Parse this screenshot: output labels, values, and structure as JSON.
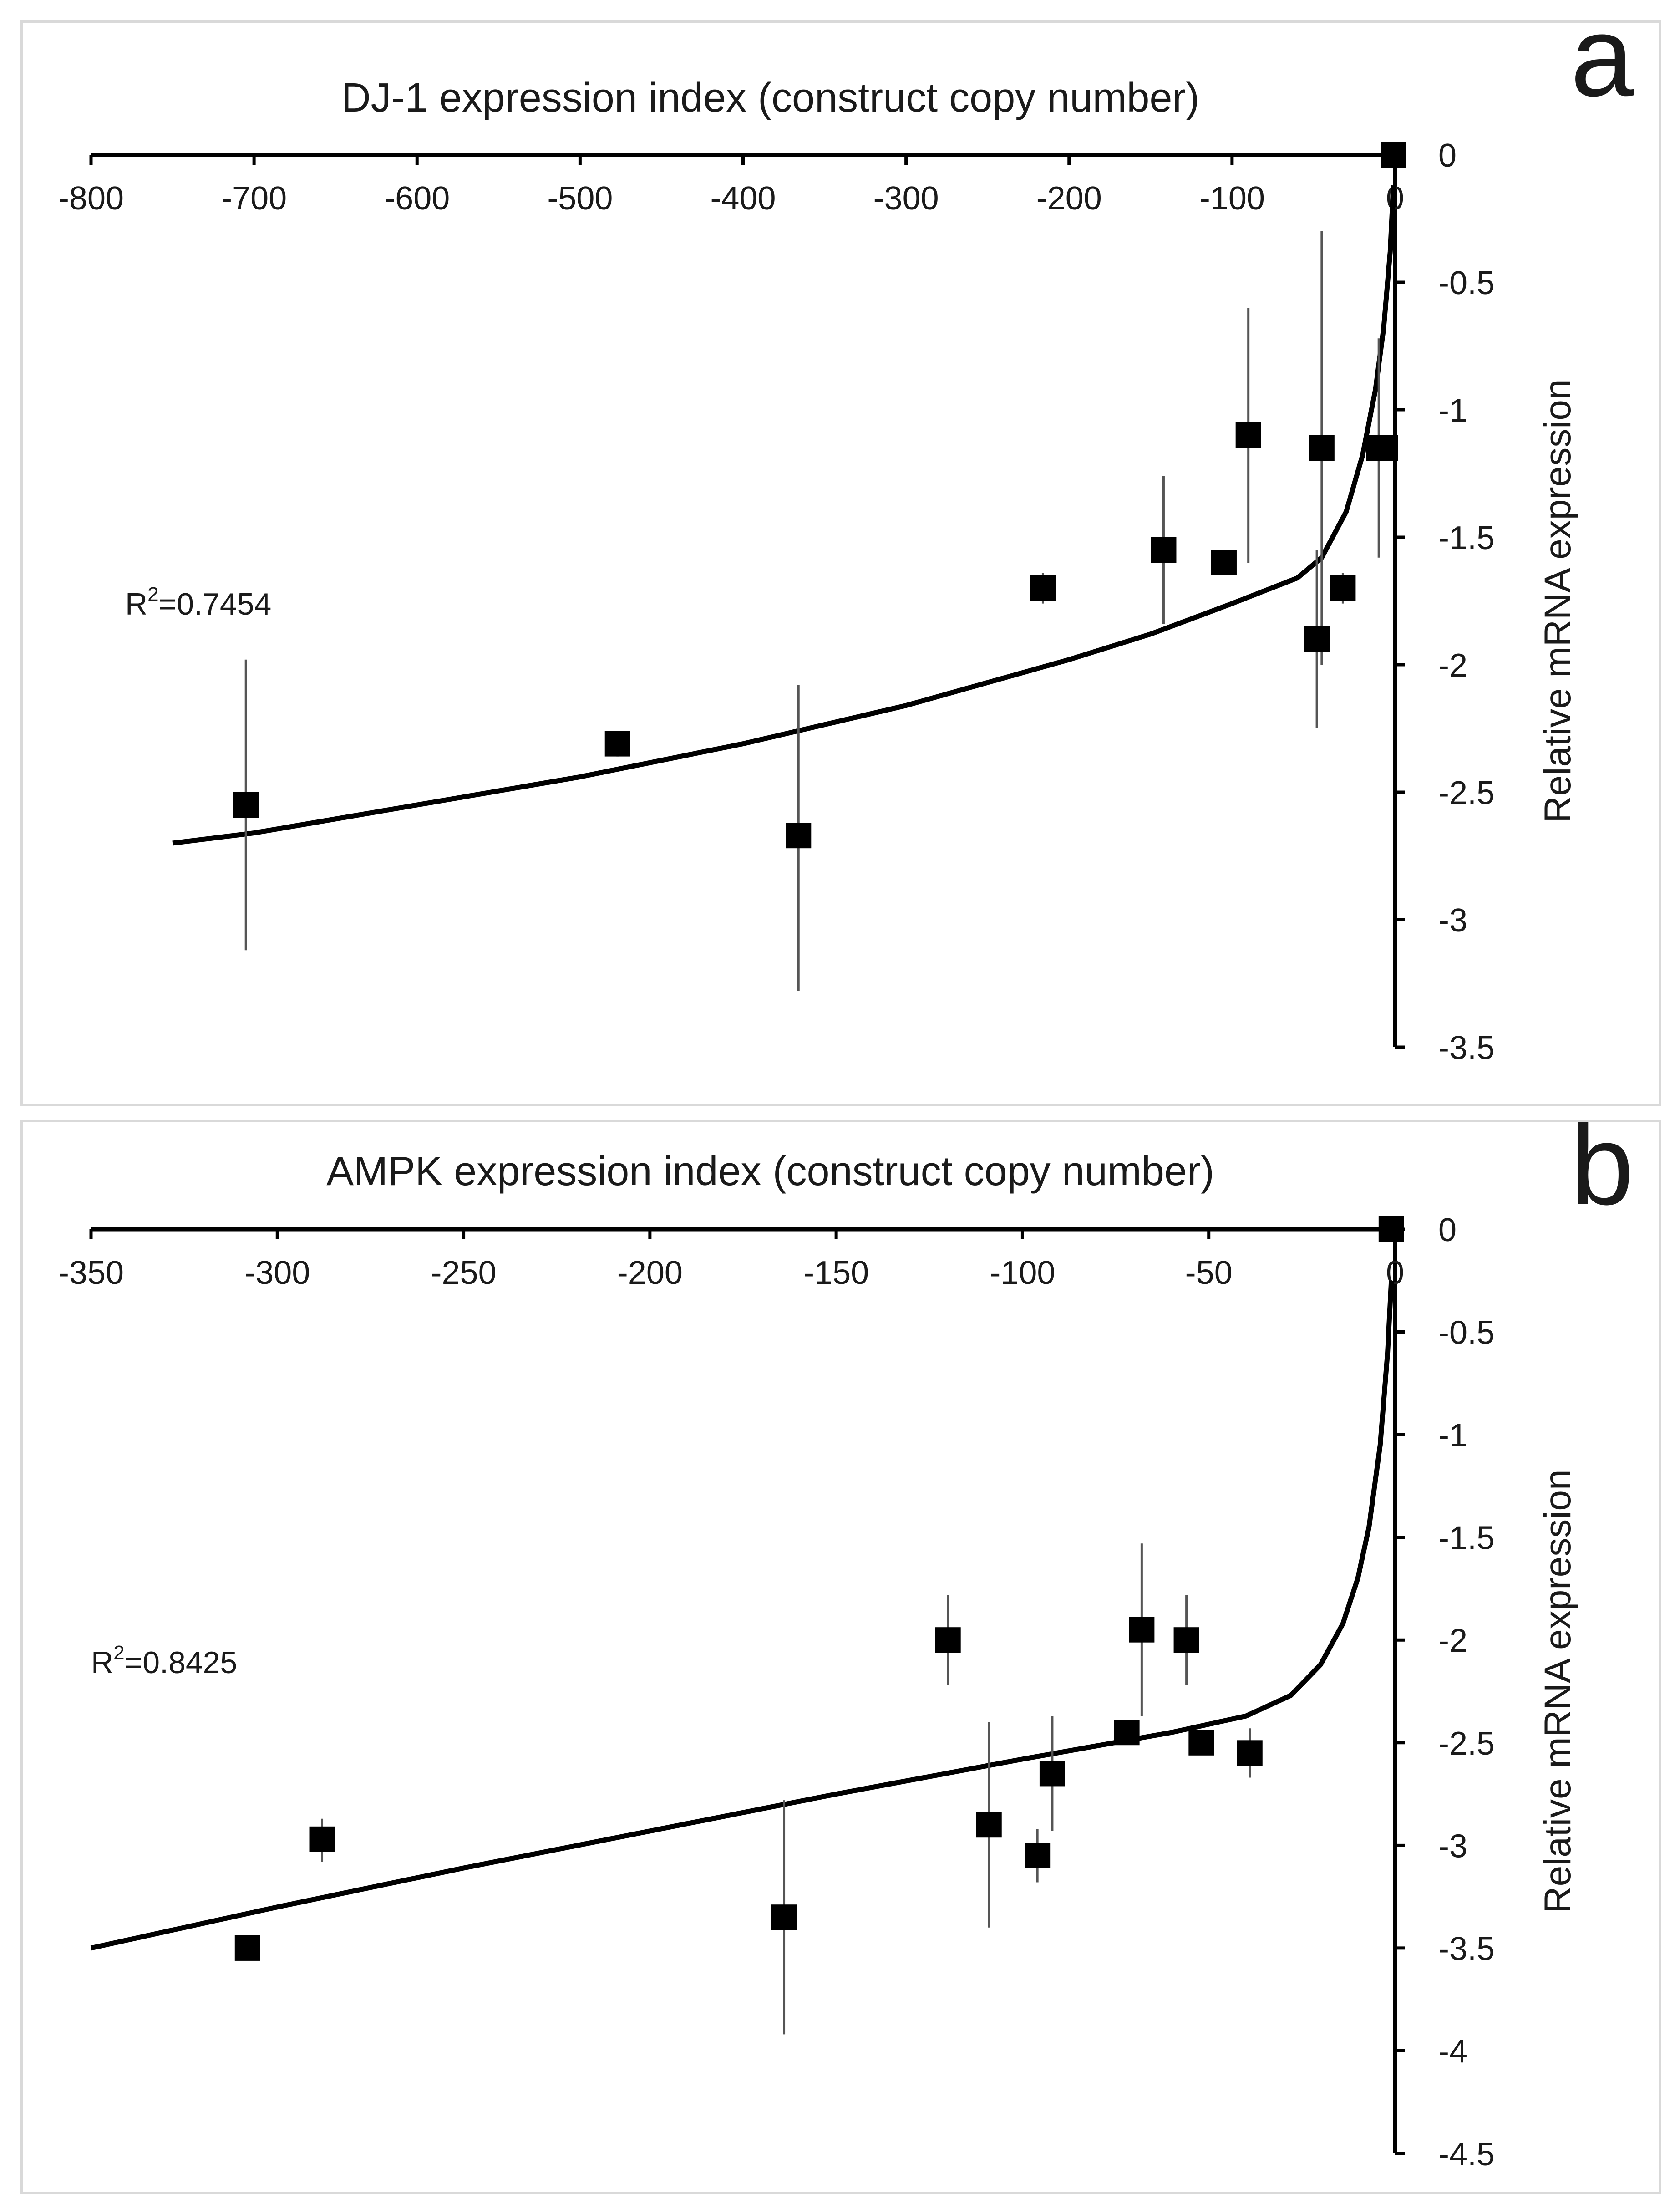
{
  "chart_data": [
    {
      "type": "scatter",
      "panel_label": "a",
      "title": "DJ-1 expression index (construct copy number)",
      "ylabel": "Relative mRNA expression",
      "r2_label": "R",
      "r2_sup": "2",
      "r2_value": "=0.7454",
      "xlim": [
        -800,
        0
      ],
      "ylim": [
        -3.5,
        0
      ],
      "xticks": [
        -800,
        -700,
        -600,
        -500,
        -400,
        -300,
        -200,
        -100,
        0
      ],
      "yticks": [
        0,
        -0.5,
        -1,
        -1.5,
        -2,
        -2.5,
        -3,
        -3.5
      ],
      "xtick_labels": [
        "-800",
        "-700",
        "-600",
        "-500",
        "-400",
        "-300",
        "-200",
        "-100",
        "0"
      ],
      "ytick_labels": [
        "0",
        "-0.5",
        "-1",
        "-1.5",
        "-2",
        "-2.5",
        "-3",
        "-3.5"
      ],
      "points": [
        {
          "x": -705,
          "y": -2.55,
          "err_low": -3.12,
          "err_high": -1.98
        },
        {
          "x": -477,
          "y": -2.31,
          "err_low": -2.36,
          "err_high": -2.26
        },
        {
          "x": -366,
          "y": -2.67,
          "err_low": -3.28,
          "err_high": -2.08
        },
        {
          "x": -216,
          "y": -1.7,
          "err_low": -1.76,
          "err_high": -1.64
        },
        {
          "x": -142,
          "y": -1.55,
          "err_low": -1.84,
          "err_high": -1.26
        },
        {
          "x": -105,
          "y": -1.6,
          "err_low": -1.65,
          "err_high": -1.55
        },
        {
          "x": -90,
          "y": -1.1,
          "err_low": -1.6,
          "err_high": -0.6
        },
        {
          "x": -48,
          "y": -1.9,
          "err_low": -2.25,
          "err_high": -1.55
        },
        {
          "x": -45,
          "y": -1.15,
          "err_low": -2.0,
          "err_high": -0.3
        },
        {
          "x": -32,
          "y": -1.7,
          "err_low": -1.76,
          "err_high": -1.64
        },
        {
          "x": -10,
          "y": -1.15,
          "err_low": -1.58,
          "err_high": -0.72
        },
        {
          "x": -6,
          "y": -1.15,
          "err_low": -1.15,
          "err_high": -1.15
        },
        {
          "x": -1,
          "y": 0.0,
          "err_low": 0.0,
          "err_high": 0.0
        }
      ],
      "trendline": {
        "x": [
          -750,
          -700,
          -600,
          -500,
          -400,
          -300,
          -200,
          -150,
          -100,
          -60,
          -45,
          -30,
          -20,
          -12,
          -7,
          -3,
          -1
        ],
        "y": [
          -2.7,
          -2.66,
          -2.55,
          -2.44,
          -2.31,
          -2.16,
          -1.98,
          -1.88,
          -1.76,
          -1.66,
          -1.58,
          -1.4,
          -1.18,
          -0.92,
          -0.68,
          -0.38,
          -0.12
        ]
      }
    },
    {
      "type": "scatter",
      "panel_label": "b",
      "title": "AMPK expression index (construct copy number)",
      "ylabel": "Relative mRNA expression",
      "r2_label": "R",
      "r2_sup": "2",
      "r2_value": "=0.8425",
      "xlim": [
        -350,
        0
      ],
      "ylim": [
        -4.5,
        0
      ],
      "xticks": [
        -350,
        -300,
        -250,
        -200,
        -150,
        -100,
        -50,
        0
      ],
      "yticks": [
        0,
        -0.5,
        -1,
        -1.5,
        -2,
        -2.5,
        -3,
        -3.5,
        -4,
        -4.5
      ],
      "xtick_labels": [
        "-350",
        "-300",
        "-250",
        "-200",
        "-150",
        "-100",
        "-50",
        "0"
      ],
      "ytick_labels": [
        "0",
        "-0.5",
        "-1",
        "-1.5",
        "-2",
        "-2.5",
        "-3",
        "-3.5",
        "-4",
        "-4.5"
      ],
      "points": [
        {
          "x": -308,
          "y": -3.5,
          "err_low": -3.52,
          "err_high": -3.48
        },
        {
          "x": -288,
          "y": -2.97,
          "err_low": -3.08,
          "err_high": -2.87
        },
        {
          "x": -164,
          "y": -3.35,
          "err_low": -3.92,
          "err_high": -2.78
        },
        {
          "x": -120,
          "y": -2.0,
          "err_low": -2.22,
          "err_high": -1.78
        },
        {
          "x": -109,
          "y": -2.9,
          "err_low": -3.4,
          "err_high": -2.4
        },
        {
          "x": -96,
          "y": -3.05,
          "err_low": -3.18,
          "err_high": -2.92
        },
        {
          "x": -92,
          "y": -2.65,
          "err_low": -2.93,
          "err_high": -2.37
        },
        {
          "x": -72,
          "y": -2.45,
          "err_low": -2.47,
          "err_high": -2.43
        },
        {
          "x": -68,
          "y": -1.95,
          "err_low": -2.37,
          "err_high": -1.53
        },
        {
          "x": -56,
          "y": -2.0,
          "err_low": -2.22,
          "err_high": -1.78
        },
        {
          "x": -52,
          "y": -2.5,
          "err_low": -2.52,
          "err_high": -2.48
        },
        {
          "x": -39,
          "y": -2.55,
          "err_low": -2.67,
          "err_high": -2.43
        },
        {
          "x": -1,
          "y": 0.0,
          "err_low": 0.0,
          "err_high": 0.0
        }
      ],
      "trendline": {
        "x": [
          -350,
          -300,
          -250,
          -200,
          -150,
          -100,
          -60,
          -40,
          -28,
          -20,
          -14,
          -10,
          -7,
          -4,
          -2,
          -1
        ],
        "y": [
          -3.5,
          -3.3,
          -3.11,
          -2.93,
          -2.75,
          -2.58,
          -2.45,
          -2.37,
          -2.27,
          -2.12,
          -1.92,
          -1.7,
          -1.45,
          -1.05,
          -0.6,
          -0.25
        ]
      }
    }
  ]
}
